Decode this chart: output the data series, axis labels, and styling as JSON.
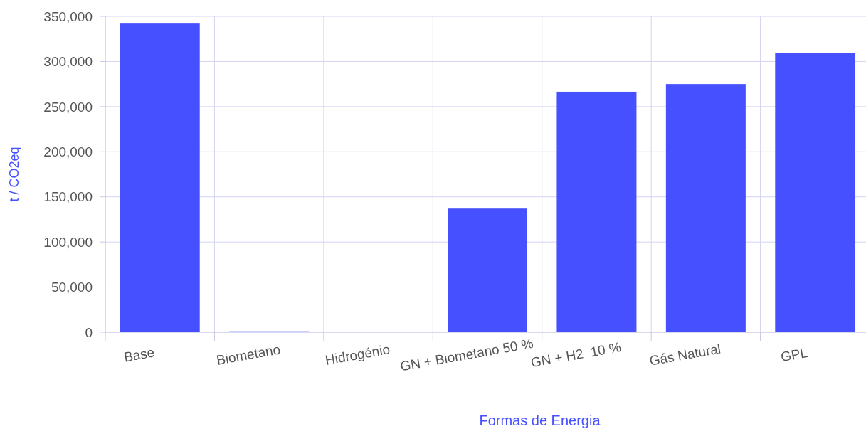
{
  "chart_data": {
    "type": "bar",
    "xlabel": "Formas de Energia",
    "ylabel": "t / CO2eq",
    "categories": [
      "Base",
      "Biometano",
      "Hidrogénio",
      "GN + Biometano 50 %",
      "GN + H2  10 %",
      "Gás Natural",
      "GPL"
    ],
    "values": [
      342000,
      1000,
      0,
      137000,
      266500,
      275000,
      309000
    ],
    "color": "#4650ff",
    "ylim": [
      0,
      350000
    ],
    "yticks": [
      {
        "value": 0,
        "label": "0"
      },
      {
        "value": 50000,
        "label": "50,000"
      },
      {
        "value": 100000,
        "label": "100,000"
      },
      {
        "value": 150000,
        "label": "150,000"
      },
      {
        "value": 200000,
        "label": "200,000"
      },
      {
        "value": 250000,
        "label": "250,000"
      },
      {
        "value": 300000,
        "label": "300,000"
      },
      {
        "value": 350000,
        "label": "350,000"
      }
    ],
    "grid": true
  }
}
